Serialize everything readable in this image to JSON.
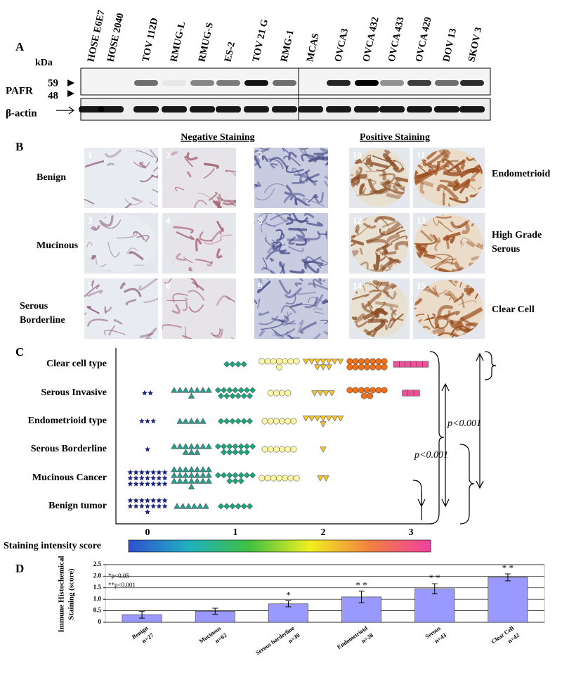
{
  "panel_a": {
    "label": "A",
    "kda": "kDa",
    "lanes": [
      "HOSE E6E7",
      "HOSE 2040",
      "TOV 112D",
      "RMUG-L",
      "RMUG-S",
      "ES-2",
      "TOV 21 G",
      "RMG-1",
      "MCAS",
      "OVCA3",
      "OVCA 432",
      "OVCA 433",
      "OVCA 429",
      "DOV 13",
      "SKOV 3"
    ],
    "pafr": "PAFR",
    "mw": [
      "59",
      "48"
    ],
    "actin": "β-actin"
  },
  "panel_b": {
    "label": "B",
    "neg_heading": "Negative Staining",
    "pos_heading": "Positive Staining",
    "rows_left": [
      [
        "Benign"
      ],
      [
        "Mucinous"
      ],
      [
        "Serous",
        "Borderline"
      ]
    ],
    "rows_right": [
      [
        "Endometrioid"
      ],
      [
        "High Grade",
        "Serous"
      ],
      [
        "Clear Cell"
      ]
    ],
    "image_numbers": [
      [
        "1",
        "2",
        "7",
        "10",
        "11"
      ],
      [
        "3",
        "4",
        "8",
        "12",
        "13"
      ],
      [
        "5",
        "6",
        "9",
        "14",
        "15"
      ]
    ]
  },
  "panel_c": {
    "label": "C",
    "type": "dot",
    "rows": [
      "Clear cell type",
      "Serous Invasive",
      "Endometrioid type",
      "Serous Borderline",
      "Mucinous Cancer",
      "Benign tumor"
    ],
    "groups": [
      {
        "shape": "star",
        "color": "#1a237e"
      },
      {
        "shape": "triangle",
        "color": "#2a9d8f"
      },
      {
        "shape": "diamond",
        "color": "#1fa37a"
      },
      {
        "shape": "circle",
        "color": "#fff7a8"
      },
      {
        "shape": "triangle-down",
        "color": "#f2c230"
      },
      {
        "shape": "circle",
        "color": "#f07018"
      },
      {
        "shape": "square",
        "color": "#f0509a"
      }
    ],
    "counts": [
      [
        0,
        0,
        4,
        8,
        10,
        14,
        6
      ],
      [
        2,
        8,
        13,
        4,
        4,
        9,
        3
      ],
      [
        3,
        5,
        6,
        6,
        8,
        0,
        0
      ],
      [
        1,
        10,
        12,
        6,
        1,
        0,
        0
      ],
      [
        21,
        22,
        10,
        7,
        2,
        0,
        0
      ],
      [
        15,
        6,
        6,
        0,
        0,
        0,
        0
      ]
    ],
    "xticks": [
      0,
      1,
      2,
      3
    ],
    "p_labels": [
      "p<0.001",
      "p<0.001"
    ],
    "colorbar_label": "Staining intensity score"
  },
  "chart_data": {
    "type": "bar",
    "label": "D",
    "categories": [
      "Benign",
      "Mucinous",
      "Serous borderline",
      "Endometrioid",
      "Serous",
      "Clear Cell"
    ],
    "n_labels": [
      "n=27",
      "n=62",
      "n=30",
      "n=28",
      "n=43",
      "n=42"
    ],
    "values": [
      0.33,
      0.48,
      0.8,
      1.1,
      1.45,
      1.95
    ],
    "errors": [
      0.15,
      0.13,
      0.13,
      0.25,
      0.22,
      0.15
    ],
    "color": "#9999ff",
    "ylabel": [
      "Immune Histochemical",
      "Staining (score)"
    ],
    "ylim": [
      0,
      2.5
    ],
    "yticks": [
      0,
      0.5,
      {
        "value": 1,
        "label": "1.0"
      },
      {
        "value": 1.5,
        "label": "1.5"
      },
      {
        "value": 2,
        "label": "2.0"
      },
      2.5
    ],
    "grid": true,
    "legend_notes": [
      "*p<0.05",
      "**p<0.001"
    ],
    "annotations": [
      {
        "x": "Serous borderline",
        "text": "*"
      },
      {
        "x": "Endometrioid",
        "text": "* *"
      },
      {
        "x": "Serous",
        "text": "* *"
      },
      {
        "x": "Clear Cell",
        "text": "* *"
      }
    ]
  }
}
